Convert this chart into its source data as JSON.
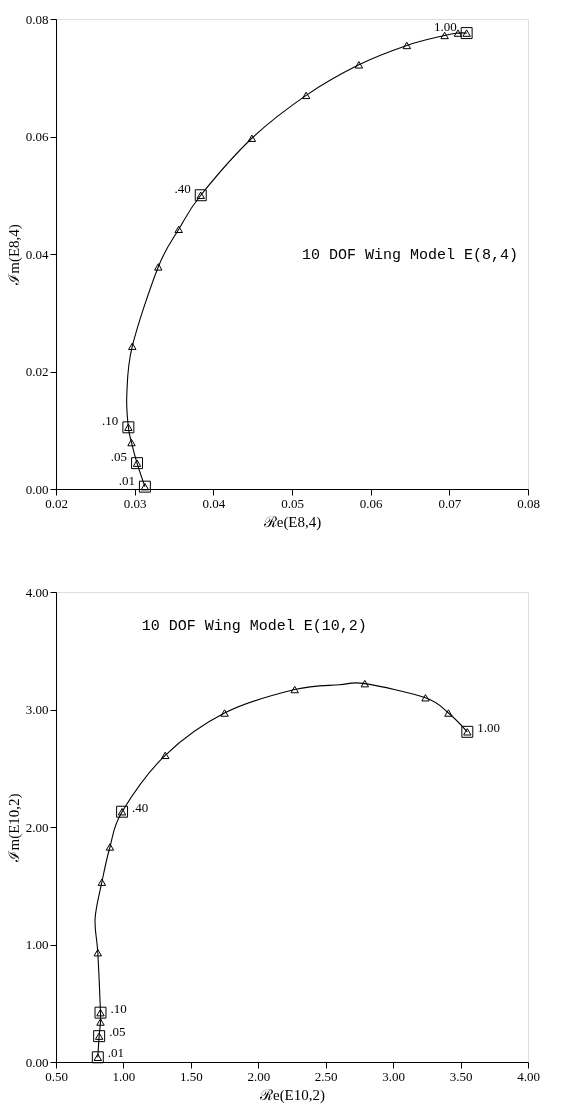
{
  "chart_data": [
    {
      "type": "scatter",
      "title": "10 DOF Wing Model E(8,4)",
      "xlabel": "ℛe(E8,4)",
      "ylabel": "ℐm(E8,4)",
      "xlim": [
        0.02,
        0.08
      ],
      "ylim": [
        0,
        0.08
      ],
      "xticks": [
        0.02,
        0.03,
        0.04,
        0.05,
        0.06,
        0.07,
        0.08
      ],
      "yticks": [
        {
          "value": 0,
          "label": "0.00"
        },
        0.02,
        0.04,
        0.06,
        0.08
      ],
      "grid": false,
      "series": [
        {
          "type": "line",
          "color": "#000000",
          "line_style": "solid",
          "x": [
            0.0313,
            0.0303,
            0.0296,
            0.0292,
            0.029,
            0.0297,
            0.033,
            0.0356,
            0.0384,
            0.0449,
            0.0518,
            0.0585,
            0.0646,
            0.0694,
            0.0711,
            0.0722
          ],
          "values": [
            0.0004,
            0.0044,
            0.0079,
            0.0105,
            0.016,
            0.0243,
            0.0378,
            0.0442,
            0.05,
            0.0597,
            0.067,
            0.0722,
            0.0755,
            0.0772,
            0.0776,
            0.0776
          ]
        },
        {
          "color": "#000000",
          "marker": "triangle",
          "x": [
            0.0313,
            0.0303,
            0.0296,
            0.0292,
            0.0297,
            0.033,
            0.0356,
            0.0384,
            0.0449,
            0.0518,
            0.0585,
            0.0646,
            0.0694,
            0.0711,
            0.0722
          ],
          "values": [
            0.0004,
            0.0044,
            0.0079,
            0.0105,
            0.0243,
            0.0378,
            0.0442,
            0.05,
            0.0597,
            0.067,
            0.0722,
            0.0755,
            0.0772,
            0.0776,
            0.0776
          ]
        },
        {
          "color": "#000000",
          "marker": "square",
          "x": [
            0.0313,
            0.0303,
            0.0292,
            0.0384,
            0.0722
          ],
          "values": [
            0.0004,
            0.0044,
            0.0105,
            0.05,
            0.0776
          ]
        }
      ],
      "annotations": [
        {
          "text": ".01",
          "x": 0.0313,
          "y": 0.0004
        },
        {
          "text": ".05",
          "x": 0.0303,
          "y": 0.0044
        },
        {
          "text": ".10",
          "x": 0.0292,
          "y": 0.0105
        },
        {
          "text": ".40",
          "x": 0.0384,
          "y": 0.05
        },
        {
          "text": "1.00",
          "x": 0.0722,
          "y": 0.0776
        }
      ]
    },
    {
      "type": "scatter",
      "title": "10 DOF Wing Model E(10,2)",
      "xlabel": "ℛe(E10,2)",
      "ylabel": "ℐm(E10,2)",
      "xlim": [
        0.5,
        4.0
      ],
      "ylim": [
        0,
        4.0
      ],
      "xticks": [
        {
          "value": 0.5,
          "label": "0.50"
        },
        {
          "value": 1,
          "label": "1.00"
        },
        {
          "value": 1.5,
          "label": "1.50"
        },
        {
          "value": 2,
          "label": "2.00"
        },
        {
          "value": 2.5,
          "label": "2.50"
        },
        {
          "value": 3,
          "label": "3.00"
        },
        {
          "value": 3.5,
          "label": "3.50"
        },
        {
          "value": 4,
          "label": "4.00"
        }
      ],
      "yticks": [
        {
          "value": 0,
          "label": "0.00"
        },
        {
          "value": 1,
          "label": "1.00"
        },
        {
          "value": 2,
          "label": "2.00"
        },
        {
          "value": 3,
          "label": "3.00"
        },
        {
          "value": 4,
          "label": "4.00"
        }
      ],
      "grid": false,
      "series": [
        {
          "type": "line",
          "color": "#000000",
          "line_style": "solid",
          "x": [
            0.81,
            0.82,
            0.83,
            0.83,
            0.81,
            0.79,
            0.84,
            0.9,
            0.99,
            1.31,
            1.75,
            2.27,
            2.6,
            2.79,
            3.24,
            3.41,
            3.55
          ],
          "values": [
            0.04,
            0.22,
            0.34,
            0.42,
            0.93,
            1.22,
            1.53,
            1.83,
            2.13,
            2.61,
            2.97,
            3.17,
            3.21,
            3.22,
            3.1,
            2.97,
            2.81
          ]
        },
        {
          "color": "#000000",
          "marker": "triangle",
          "x": [
            0.81,
            0.82,
            0.83,
            0.83,
            0.81,
            0.84,
            0.9,
            0.99,
            1.31,
            1.75,
            2.27,
            2.79,
            3.24,
            3.41,
            3.55
          ],
          "values": [
            0.04,
            0.22,
            0.34,
            0.42,
            0.93,
            1.53,
            1.83,
            2.13,
            2.61,
            2.97,
            3.17,
            3.22,
            3.1,
            2.97,
            2.81
          ]
        },
        {
          "color": "#000000",
          "marker": "square",
          "x": [
            0.81,
            0.82,
            0.83,
            0.99,
            3.55
          ],
          "values": [
            0.04,
            0.22,
            0.42,
            2.13,
            2.81
          ]
        }
      ],
      "annotations": [
        {
          "text": ".01",
          "x": 0.81,
          "y": 0.04
        },
        {
          "text": ".05",
          "x": 0.82,
          "y": 0.22
        },
        {
          "text": ".10",
          "x": 0.83,
          "y": 0.42
        },
        {
          "text": ".40",
          "x": 0.99,
          "y": 2.13
        },
        {
          "text": "1.00",
          "x": 3.55,
          "y": 2.81
        }
      ]
    }
  ]
}
